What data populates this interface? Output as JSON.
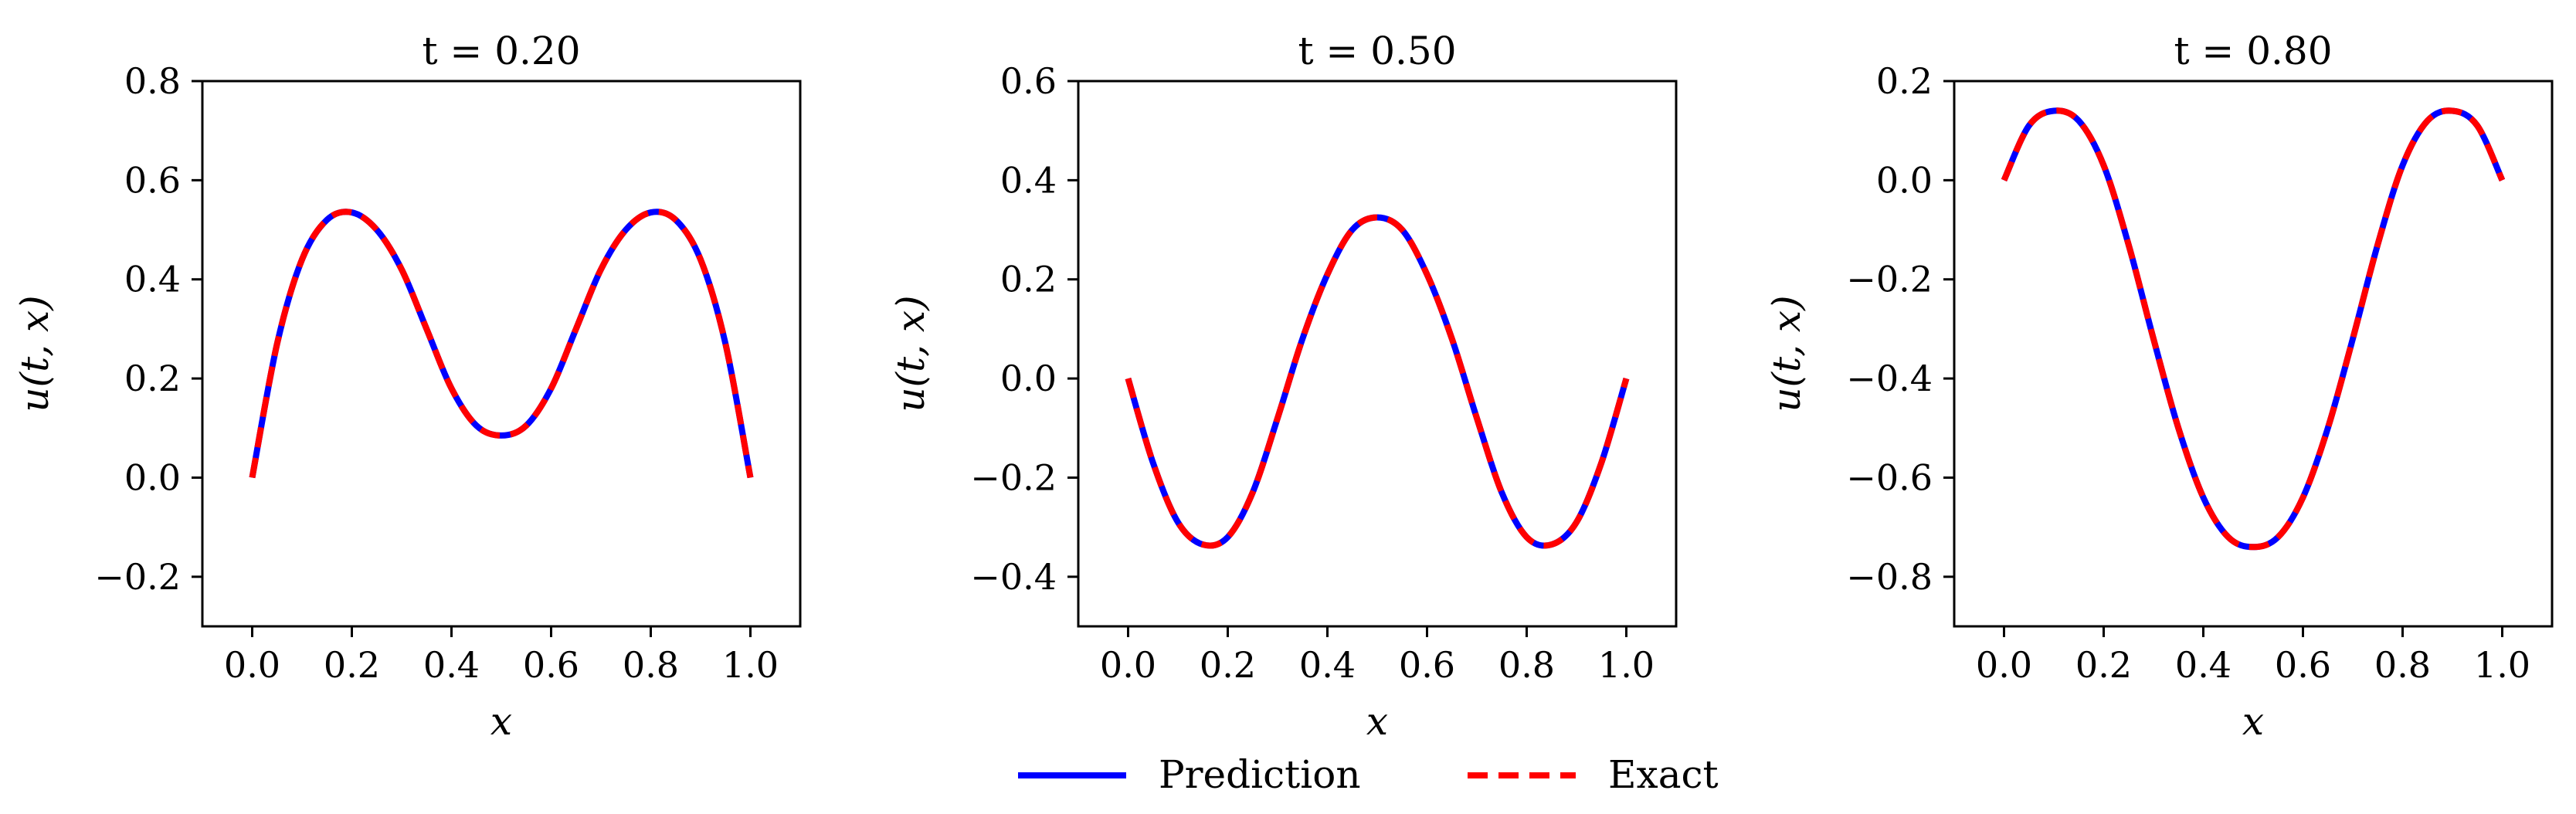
{
  "figure": {
    "legend": {
      "placement": "bottom-center",
      "entries": [
        {
          "label": "Prediction",
          "color": "#0000ff",
          "style": "solid"
        },
        {
          "label": "Exact",
          "color": "#ff0000",
          "style": "dashed"
        }
      ]
    }
  },
  "chart_data": [
    {
      "type": "line",
      "title": "t = 0.20",
      "xlabel": "x",
      "ylabel": "u(t, x)",
      "xlim": [
        -0.1,
        1.1
      ],
      "ylim": [
        -0.3,
        0.8
      ],
      "xticks": [
        0.0,
        0.2,
        0.4,
        0.6,
        0.8,
        1.0
      ],
      "xtick_labels": [
        "0.0",
        "0.2",
        "0.4",
        "0.6",
        "0.8",
        "1.0"
      ],
      "yticks": [
        -0.2,
        0.0,
        0.2,
        0.4,
        0.6,
        0.8
      ],
      "ytick_labels": [
        "−0.2",
        "0.0",
        "0.2",
        "0.4",
        "0.6",
        "0.8"
      ],
      "x": [
        0.0,
        0.05,
        0.1,
        0.15,
        0.2,
        0.25,
        0.3,
        0.35,
        0.4,
        0.45,
        0.5,
        0.55,
        0.6,
        0.65,
        0.7,
        0.75,
        0.8,
        0.85,
        0.9,
        0.95,
        1.0
      ],
      "series": [
        {
          "name": "Prediction",
          "values": [
            0.0,
            0.27,
            0.44,
            0.52,
            0.535,
            0.5,
            0.42,
            0.3,
            0.18,
            0.105,
            0.085,
            0.105,
            0.18,
            0.3,
            0.42,
            0.5,
            0.535,
            0.52,
            0.44,
            0.27,
            0.0
          ]
        },
        {
          "name": "Exact",
          "values": [
            0.0,
            0.27,
            0.44,
            0.52,
            0.535,
            0.5,
            0.42,
            0.3,
            0.18,
            0.105,
            0.085,
            0.105,
            0.18,
            0.3,
            0.42,
            0.5,
            0.535,
            0.52,
            0.44,
            0.27,
            0.0
          ]
        }
      ]
    },
    {
      "type": "line",
      "title": "t = 0.50",
      "xlabel": "x",
      "ylabel": "u(t, x)",
      "xlim": [
        -0.1,
        1.1
      ],
      "ylim": [
        -0.5,
        0.6
      ],
      "xticks": [
        0.0,
        0.2,
        0.4,
        0.6,
        0.8,
        1.0
      ],
      "xtick_labels": [
        "0.0",
        "0.2",
        "0.4",
        "0.6",
        "0.8",
        "1.0"
      ],
      "yticks": [
        -0.4,
        -0.2,
        0.0,
        0.2,
        0.4,
        0.6
      ],
      "ytick_labels": [
        "−0.4",
        "−0.2",
        "0.0",
        "0.2",
        "0.4",
        "0.6"
      ],
      "x": [
        0.0,
        0.05,
        0.1,
        0.15,
        0.2,
        0.25,
        0.3,
        0.35,
        0.4,
        0.45,
        0.5,
        0.55,
        0.6,
        0.65,
        0.7,
        0.75,
        0.8,
        0.85,
        0.9,
        0.95,
        1.0
      ],
      "series": [
        {
          "name": "Prediction",
          "values": [
            0.0,
            -0.17,
            -0.29,
            -0.335,
            -0.32,
            -0.23,
            -0.08,
            0.08,
            0.21,
            0.3,
            0.325,
            0.3,
            0.21,
            0.08,
            -0.08,
            -0.23,
            -0.32,
            -0.335,
            -0.29,
            -0.17,
            0.0
          ]
        },
        {
          "name": "Exact",
          "values": [
            0.0,
            -0.17,
            -0.29,
            -0.335,
            -0.32,
            -0.23,
            -0.08,
            0.08,
            0.21,
            0.3,
            0.325,
            0.3,
            0.21,
            0.08,
            -0.08,
            -0.23,
            -0.32,
            -0.335,
            -0.29,
            -0.17,
            0.0
          ]
        }
      ]
    },
    {
      "type": "line",
      "title": "t = 0.80",
      "xlabel": "x",
      "ylabel": "u(t, x)",
      "xlim": [
        -0.1,
        1.1
      ],
      "ylim": [
        -0.9,
        0.2
      ],
      "xticks": [
        0.0,
        0.2,
        0.4,
        0.6,
        0.8,
        1.0
      ],
      "xtick_labels": [
        "0.0",
        "0.2",
        "0.4",
        "0.6",
        "0.8",
        "1.0"
      ],
      "yticks": [
        -0.8,
        -0.6,
        -0.4,
        -0.2,
        0.0,
        0.2
      ],
      "ytick_labels": [
        "−0.8",
        "−0.6",
        "−0.4",
        "−0.2",
        "0.0",
        "0.2"
      ],
      "x": [
        0.0,
        0.05,
        0.1,
        0.15,
        0.2,
        0.25,
        0.3,
        0.35,
        0.4,
        0.45,
        0.5,
        0.55,
        0.6,
        0.65,
        0.7,
        0.75,
        0.8,
        0.85,
        0.9,
        0.95,
        1.0
      ],
      "series": [
        {
          "name": "Prediction",
          "values": [
            0.0,
            0.11,
            0.14,
            0.12,
            0.03,
            -0.13,
            -0.32,
            -0.5,
            -0.64,
            -0.72,
            -0.74,
            -0.72,
            -0.64,
            -0.5,
            -0.32,
            -0.13,
            0.03,
            0.12,
            0.14,
            0.11,
            0.0
          ]
        },
        {
          "name": "Exact",
          "values": [
            0.0,
            0.11,
            0.14,
            0.12,
            0.03,
            -0.13,
            -0.32,
            -0.5,
            -0.64,
            -0.72,
            -0.74,
            -0.72,
            -0.64,
            -0.5,
            -0.32,
            -0.13,
            0.03,
            0.12,
            0.14,
            0.11,
            0.0
          ]
        }
      ]
    }
  ]
}
